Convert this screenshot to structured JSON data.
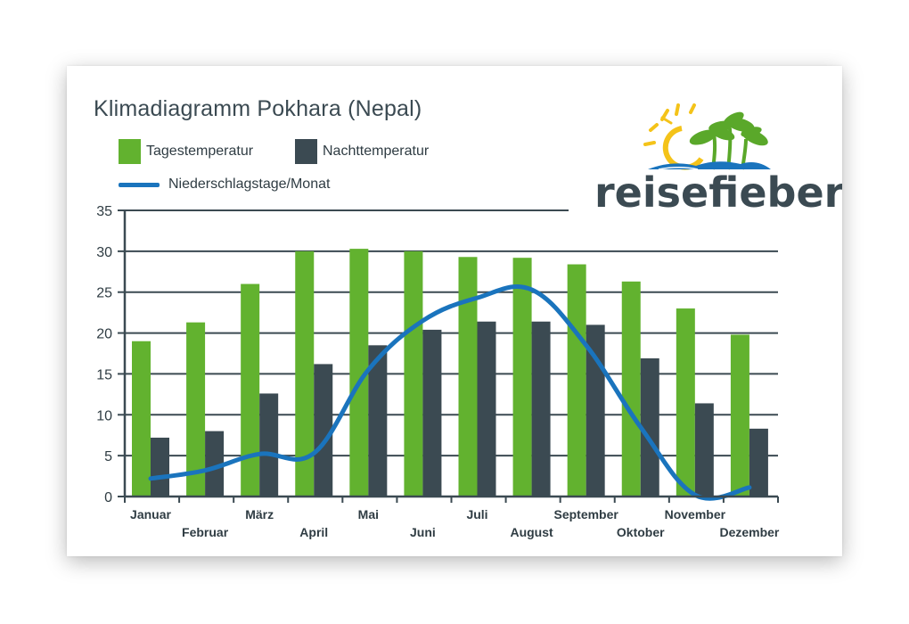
{
  "chart_data": {
    "type": "bar",
    "title": "Klimadiagramm Pokhara (Nepal)",
    "categories": [
      "Januar",
      "Februar",
      "März",
      "April",
      "Mai",
      "Juni",
      "Juli",
      "August",
      "September",
      "Oktober",
      "November",
      "Dezember"
    ],
    "series": [
      {
        "name": "Tagestemperatur",
        "type": "bar",
        "color": "#62b22f",
        "values": [
          19.0,
          21.3,
          26.0,
          30.0,
          30.3,
          30.0,
          29.3,
          29.2,
          28.4,
          26.3,
          23.0,
          19.8
        ]
      },
      {
        "name": "Nachttemperatur",
        "type": "bar",
        "color": "#3b4a52",
        "values": [
          7.2,
          8.0,
          12.6,
          16.2,
          18.5,
          20.4,
          21.4,
          21.4,
          21.0,
          16.9,
          11.4,
          8.3
        ]
      },
      {
        "name": "Niederschlagstage/Monat",
        "type": "line",
        "color": "#1a74bd",
        "values": [
          2.2,
          3.2,
          5.2,
          5.3,
          15.5,
          21.5,
          24.3,
          25.3,
          18.5,
          8.5,
          0.2,
          1.1
        ]
      }
    ],
    "ylim": [
      0,
      35
    ],
    "yticks": [
      "0",
      "5",
      "10",
      "15",
      "20",
      "25",
      "30",
      "35"
    ],
    "xlabel": "",
    "ylabel": "",
    "legend": "top-left",
    "grid": true
  },
  "brand": {
    "name": "reisefieber",
    "colors": {
      "text": "#3b4a52",
      "sun": "#f4c319",
      "palm": "#5aa82a",
      "water": "#1a74bd"
    }
  }
}
